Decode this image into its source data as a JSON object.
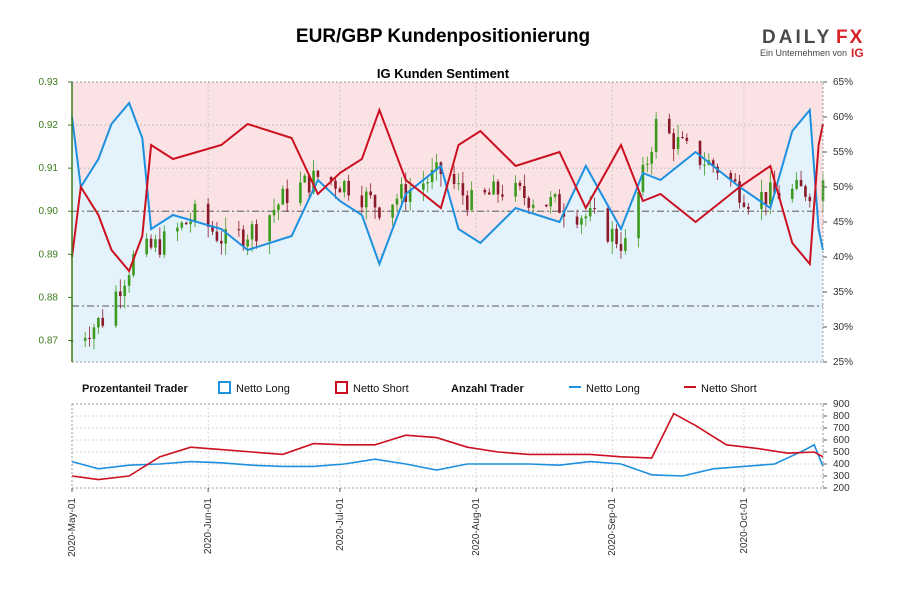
{
  "header": {
    "title": "EUR/GBP Kundenpositionierung",
    "subtitle": "IG Kunden Sentiment",
    "logo_daily": "DAILY",
    "logo_fx": "FX",
    "logo_tagline": "Ein Unternehmen von",
    "logo_ig": "IG"
  },
  "legend": {
    "group1_label": "Prozentanteil Trader",
    "group1_long": "Netto Long",
    "group1_short": "Netto Short",
    "group2_label": "Anzahl Trader",
    "group2_long": "Netto Long",
    "group2_short": "Netto Short"
  },
  "colors": {
    "long": "#1e90e0",
    "short": "#cc1020",
    "long_fill": "#e3f2fb",
    "short_fill": "#fbe3e5",
    "candle_up": "#3c9a1e",
    "candle_down": "#8b1a2a",
    "axis_green": "#3a7a1a"
  },
  "chart_data": [
    {
      "id": "price",
      "type": "candlestick",
      "title": "IG Kunden Sentiment",
      "y_left_ticks": [
        "0.87",
        "0.88",
        "0.89",
        "0.90",
        "0.91",
        "0.92",
        "0.93"
      ],
      "ylim_left": [
        0.865,
        0.93
      ],
      "y_right_ticks": [
        "25%",
        "30%",
        "35%",
        "40%",
        "45%",
        "50%",
        "55%",
        "60%",
        "65%"
      ],
      "ylim_right": [
        25,
        65
      ],
      "ref_lines": [
        0.9,
        0.878
      ],
      "x_ticks": [
        "2020-May-01",
        "2020-Jun-01",
        "2020-Jul-01",
        "2020-Aug-01",
        "2020-Sep-01",
        "2020-Oct-01"
      ],
      "x_range": [
        "2020-05-01",
        "2020-10-19"
      ],
      "close_weekly": [
        [
          "2020-05-01",
          0.87
        ],
        [
          "2020-05-08",
          0.875
        ],
        [
          "2020-05-15",
          0.889
        ],
        [
          "2020-05-22",
          0.893
        ],
        [
          "2020-05-29",
          0.899
        ],
        [
          "2020-06-05",
          0.893
        ],
        [
          "2020-06-12",
          0.896
        ],
        [
          "2020-06-19",
          0.904
        ],
        [
          "2020-06-26",
          0.908
        ],
        [
          "2020-07-03",
          0.906
        ],
        [
          "2020-07-10",
          0.901
        ],
        [
          "2020-07-17",
          0.905
        ],
        [
          "2020-07-24",
          0.909
        ],
        [
          "2020-07-31",
          0.902
        ],
        [
          "2020-08-07",
          0.905
        ],
        [
          "2020-08-14",
          0.903
        ],
        [
          "2020-08-21",
          0.901
        ],
        [
          "2020-08-28",
          0.898
        ],
        [
          "2020-09-04",
          0.892
        ],
        [
          "2020-09-11",
          0.92
        ],
        [
          "2020-09-18",
          0.914
        ],
        [
          "2020-09-25",
          0.91
        ],
        [
          "2020-10-02",
          0.903
        ],
        [
          "2020-10-09",
          0.904
        ],
        [
          "2020-10-16",
          0.905
        ],
        [
          "2020-10-19",
          0.907
        ]
      ],
      "series": [
        {
          "name": "Netto Long",
          "unit": "%",
          "points": [
            [
              "2020-05-01",
              60
            ],
            [
              "2020-05-03",
              50
            ],
            [
              "2020-05-07",
              54
            ],
            [
              "2020-05-10",
              59
            ],
            [
              "2020-05-14",
              62
            ],
            [
              "2020-05-17",
              57
            ],
            [
              "2020-05-19",
              44
            ],
            [
              "2020-05-24",
              46
            ],
            [
              "2020-06-04",
              44
            ],
            [
              "2020-06-10",
              41
            ],
            [
              "2020-06-20",
              43
            ],
            [
              "2020-06-26",
              51
            ],
            [
              "2020-07-01",
              48
            ],
            [
              "2020-07-06",
              46
            ],
            [
              "2020-07-10",
              39
            ],
            [
              "2020-07-16",
              49
            ],
            [
              "2020-07-24",
              53
            ],
            [
              "2020-07-28",
              44
            ],
            [
              "2020-08-02",
              42
            ],
            [
              "2020-08-10",
              47
            ],
            [
              "2020-08-20",
              45
            ],
            [
              "2020-08-26",
              53
            ],
            [
              "2020-09-03",
              44
            ],
            [
              "2020-09-08",
              52
            ],
            [
              "2020-09-12",
              51
            ],
            [
              "2020-09-20",
              55
            ],
            [
              "2020-09-30",
              50
            ],
            [
              "2020-10-07",
              47
            ],
            [
              "2020-10-12",
              58
            ],
            [
              "2020-10-16",
              61
            ],
            [
              "2020-10-18",
              44
            ],
            [
              "2020-10-19",
              41
            ]
          ]
        },
        {
          "name": "Netto Short",
          "unit": "%",
          "points": [
            [
              "2020-05-01",
              40
            ],
            [
              "2020-05-03",
              50
            ],
            [
              "2020-05-07",
              46
            ],
            [
              "2020-05-10",
              41
            ],
            [
              "2020-05-14",
              38
            ],
            [
              "2020-05-17",
              43
            ],
            [
              "2020-05-19",
              56
            ],
            [
              "2020-05-24",
              54
            ],
            [
              "2020-06-04",
              56
            ],
            [
              "2020-06-10",
              59
            ],
            [
              "2020-06-20",
              57
            ],
            [
              "2020-06-26",
              49
            ],
            [
              "2020-07-01",
              52
            ],
            [
              "2020-07-06",
              54
            ],
            [
              "2020-07-10",
              61
            ],
            [
              "2020-07-16",
              51
            ],
            [
              "2020-07-24",
              47
            ],
            [
              "2020-07-28",
              56
            ],
            [
              "2020-08-02",
              58
            ],
            [
              "2020-08-10",
              53
            ],
            [
              "2020-08-20",
              55
            ],
            [
              "2020-08-26",
              47
            ],
            [
              "2020-09-03",
              56
            ],
            [
              "2020-09-08",
              48
            ],
            [
              "2020-09-12",
              49
            ],
            [
              "2020-09-20",
              45
            ],
            [
              "2020-09-30",
              50
            ],
            [
              "2020-10-07",
              53
            ],
            [
              "2020-10-12",
              42
            ],
            [
              "2020-10-16",
              39
            ],
            [
              "2020-10-18",
              56
            ],
            [
              "2020-10-19",
              59
            ]
          ]
        }
      ]
    },
    {
      "id": "counts",
      "type": "line",
      "y_ticks": [
        "200",
        "300",
        "400",
        "500",
        "600",
        "700",
        "800",
        "900"
      ],
      "ylim": [
        200,
        900
      ],
      "x_range": [
        "2020-05-01",
        "2020-10-19"
      ],
      "series": [
        {
          "name": "Netto Long",
          "points": [
            [
              "2020-05-01",
              420
            ],
            [
              "2020-05-07",
              360
            ],
            [
              "2020-05-14",
              390
            ],
            [
              "2020-05-21",
              400
            ],
            [
              "2020-05-28",
              420
            ],
            [
              "2020-06-04",
              410
            ],
            [
              "2020-06-11",
              390
            ],
            [
              "2020-06-18",
              380
            ],
            [
              "2020-06-25",
              380
            ],
            [
              "2020-07-02",
              400
            ],
            [
              "2020-07-09",
              440
            ],
            [
              "2020-07-16",
              400
            ],
            [
              "2020-07-23",
              350
            ],
            [
              "2020-07-30",
              400
            ],
            [
              "2020-08-06",
              400
            ],
            [
              "2020-08-13",
              400
            ],
            [
              "2020-08-20",
              390
            ],
            [
              "2020-08-27",
              420
            ],
            [
              "2020-09-03",
              400
            ],
            [
              "2020-09-10",
              310
            ],
            [
              "2020-09-17",
              300
            ],
            [
              "2020-09-24",
              360
            ],
            [
              "2020-10-01",
              380
            ],
            [
              "2020-10-08",
              400
            ],
            [
              "2020-10-15",
              520
            ],
            [
              "2020-10-17",
              560
            ],
            [
              "2020-10-19",
              380
            ]
          ]
        },
        {
          "name": "Netto Short",
          "points": [
            [
              "2020-05-01",
              300
            ],
            [
              "2020-05-07",
              270
            ],
            [
              "2020-05-14",
              300
            ],
            [
              "2020-05-21",
              460
            ],
            [
              "2020-05-28",
              540
            ],
            [
              "2020-06-04",
              520
            ],
            [
              "2020-06-11",
              500
            ],
            [
              "2020-06-18",
              480
            ],
            [
              "2020-06-25",
              570
            ],
            [
              "2020-07-02",
              560
            ],
            [
              "2020-07-09",
              560
            ],
            [
              "2020-07-16",
              640
            ],
            [
              "2020-07-23",
              620
            ],
            [
              "2020-07-30",
              540
            ],
            [
              "2020-08-06",
              500
            ],
            [
              "2020-08-13",
              480
            ],
            [
              "2020-08-20",
              480
            ],
            [
              "2020-08-27",
              480
            ],
            [
              "2020-09-03",
              460
            ],
            [
              "2020-09-10",
              450
            ],
            [
              "2020-09-15",
              820
            ],
            [
              "2020-09-20",
              720
            ],
            [
              "2020-09-27",
              560
            ],
            [
              "2020-10-04",
              530
            ],
            [
              "2020-10-11",
              490
            ],
            [
              "2020-10-17",
              500
            ],
            [
              "2020-10-19",
              460
            ]
          ]
        }
      ]
    }
  ]
}
